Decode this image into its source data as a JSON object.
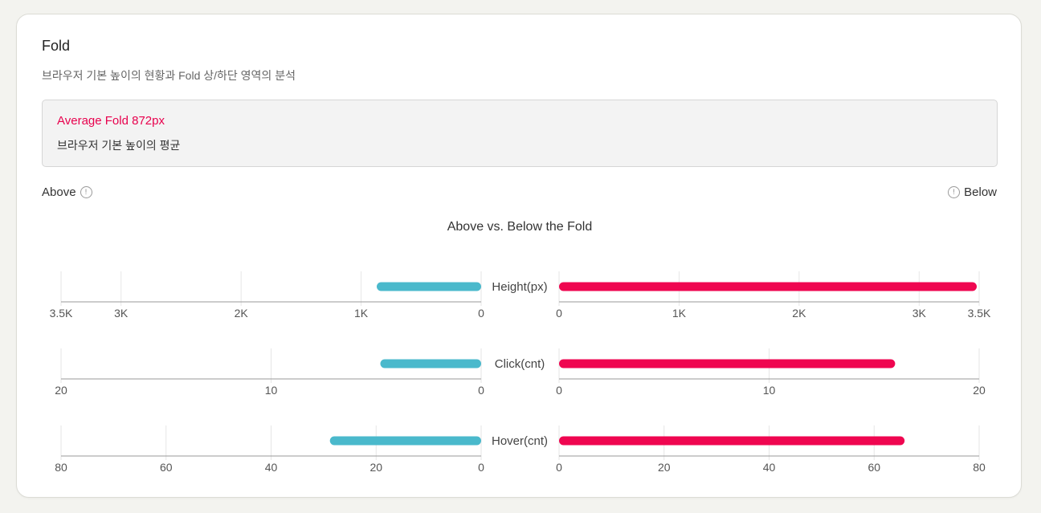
{
  "section": {
    "title": "Fold",
    "subtitle": "브라우저 기본 높이의 현황과 Fold 상/하단 영역의 분석"
  },
  "summary": {
    "value": "Average Fold 872px",
    "description": "브라우저 기본 높이의 평균"
  },
  "legend": {
    "above_label": "Above",
    "below_label": "Below",
    "info_icon": "info-icon"
  },
  "colors": {
    "above": "#4ab9cc",
    "below": "#ef0650",
    "accent_text": "#e8004d"
  },
  "chart_data": {
    "type": "bar",
    "orientation": "horizontal-diverging",
    "title": "Above vs. Below the Fold",
    "grid": true,
    "rows": [
      {
        "metric": "Height(px)",
        "above": 870,
        "below": 3480,
        "range": [
          0,
          3500
        ],
        "ticks": [
          0,
          1000,
          2000,
          3000,
          3500
        ],
        "tick_labels": [
          "0",
          "1K",
          "2K",
          "3K",
          "3.5K"
        ]
      },
      {
        "metric": "Click(cnt)",
        "above": 4.8,
        "below": 16,
        "range": [
          0,
          20
        ],
        "ticks": [
          0,
          10,
          20
        ],
        "tick_labels": [
          "0",
          "10",
          "20"
        ]
      },
      {
        "metric": "Hover(cnt)",
        "above": 28.8,
        "below": 65.8,
        "range": [
          0,
          80
        ],
        "ticks": [
          0,
          20,
          40,
          60,
          80
        ],
        "tick_labels": [
          "0",
          "20",
          "40",
          "60",
          "80"
        ]
      }
    ]
  }
}
